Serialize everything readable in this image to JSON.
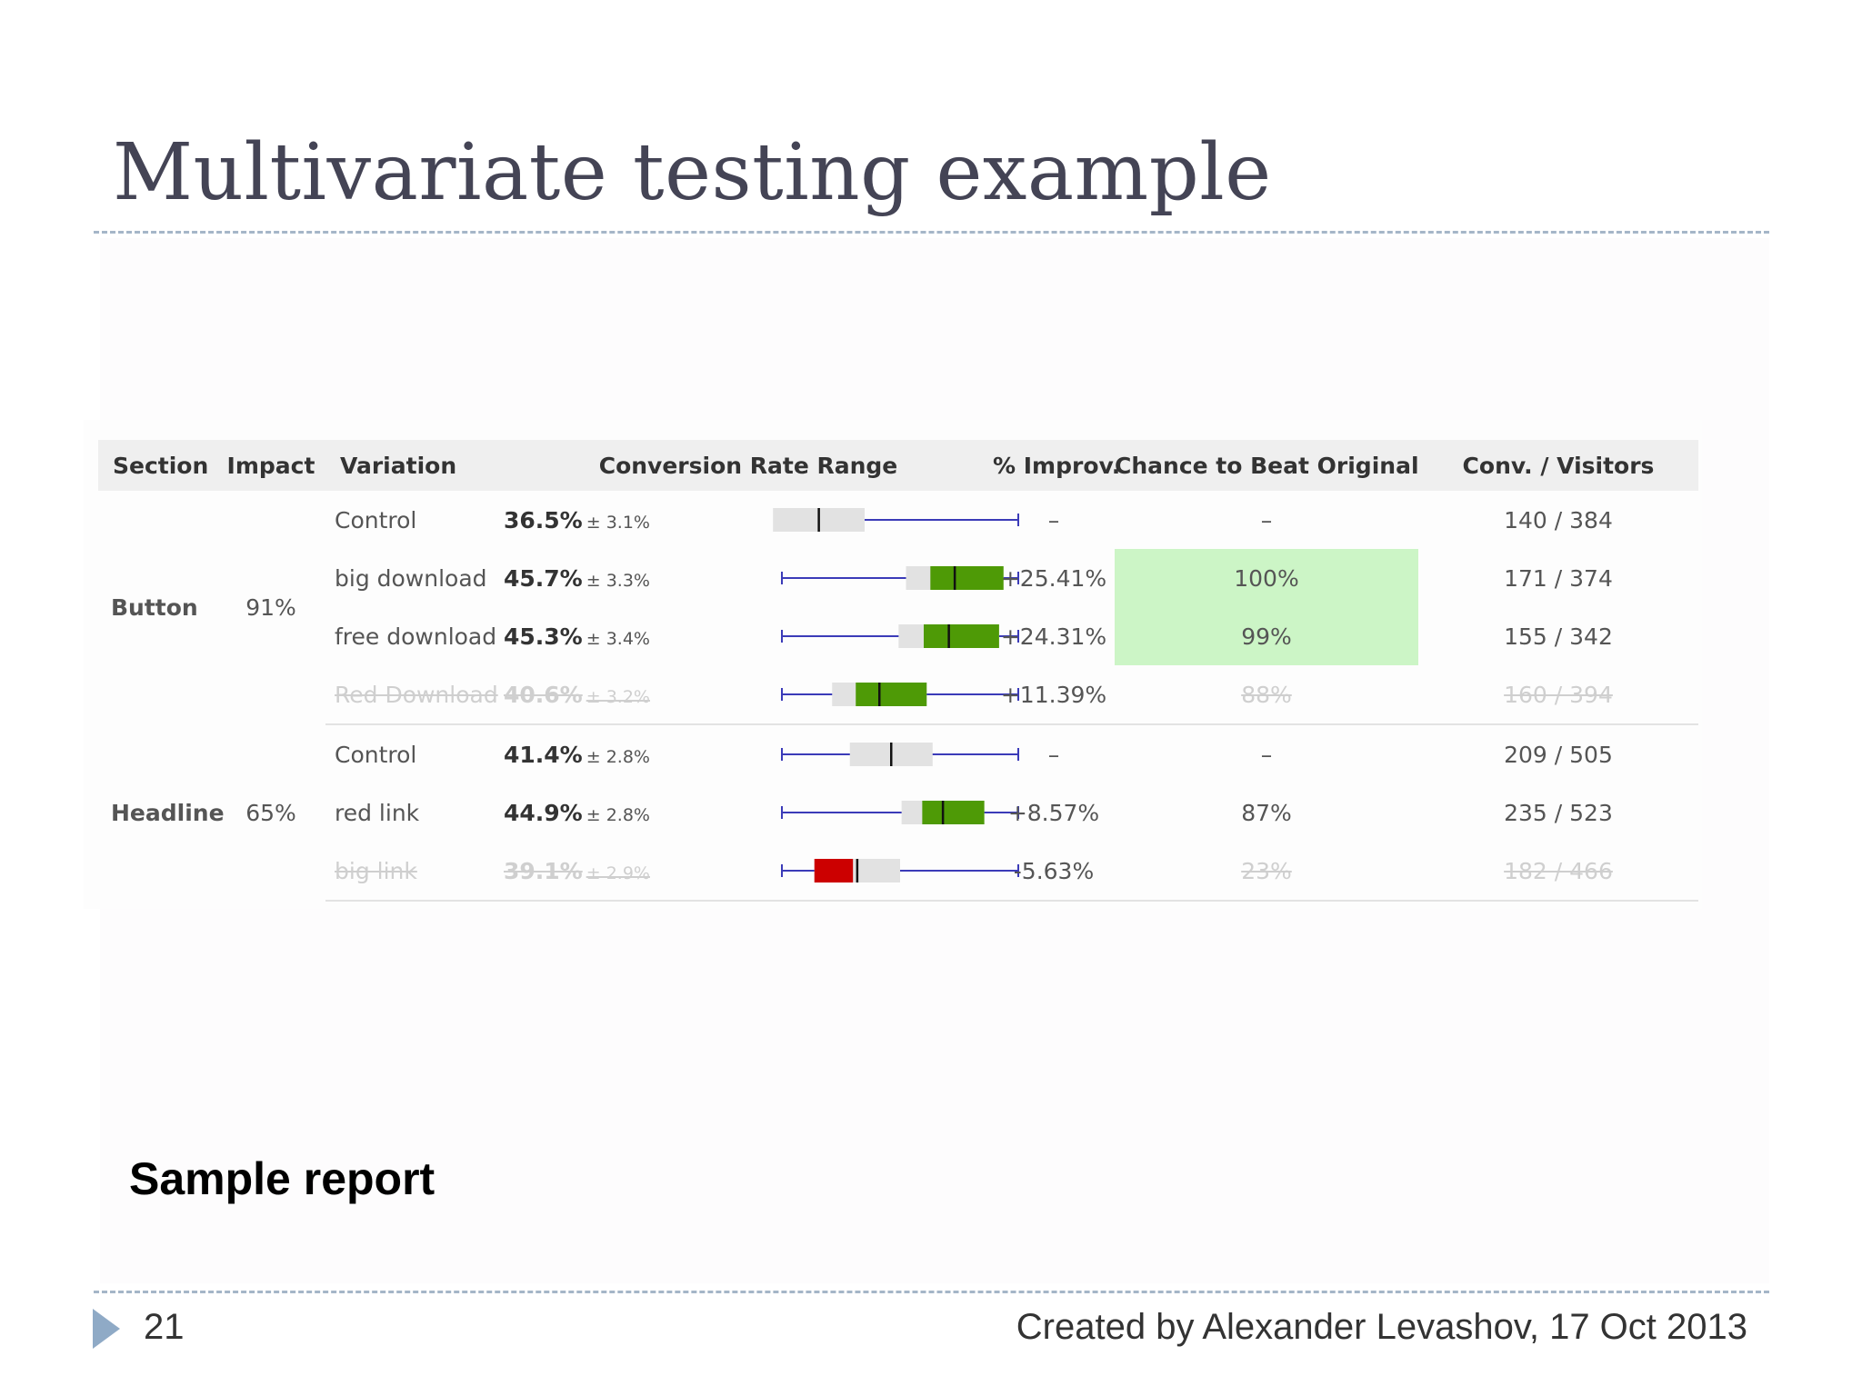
{
  "slide": {
    "title": "Multivariate testing example",
    "caption": "Sample report",
    "page_number": "21",
    "credit": "Created by Alexander Levashov, 17 Oct 2013"
  },
  "report": {
    "headers": {
      "section": "Section",
      "impact": "Impact",
      "variation": "Variation",
      "range": "Conversion Rate Range",
      "improvement": "% Improv.",
      "chance": "Chance to Beat Original",
      "conversions": "Conv. / Visitors"
    },
    "groups": [
      {
        "section": "Button",
        "impact": "91%",
        "rows": [
          {
            "variation": "Control",
            "rate": "36.5%",
            "error": "± 3.1%",
            "rate_value": 36.5,
            "error_value": 3.1,
            "bar_color": "gray",
            "improvement": "–",
            "improvement_color": "neutral",
            "chance": "–",
            "best": false,
            "conversions": "140 / 384",
            "disabled": false
          },
          {
            "variation": "big download",
            "rate": "45.7%",
            "error": "± 3.3%",
            "rate_value": 45.7,
            "error_value": 3.3,
            "bar_color": "green",
            "improvement": "+25.41%",
            "improvement_color": "green",
            "chance": "100%",
            "best": true,
            "conversions": "171 / 374",
            "disabled": false
          },
          {
            "variation": "free download",
            "rate": "45.3%",
            "error": "± 3.4%",
            "rate_value": 45.3,
            "error_value": 3.4,
            "bar_color": "green",
            "improvement": "+24.31%",
            "improvement_color": "green",
            "chance": "99%",
            "best": true,
            "conversions": "155 / 342",
            "disabled": false
          },
          {
            "variation": "Red Download",
            "rate": "40.6%",
            "error": "± 3.2%",
            "rate_value": 40.6,
            "error_value": 3.2,
            "bar_color": "green",
            "improvement": "+11.39%",
            "improvement_color": "green",
            "chance": "88%",
            "best": false,
            "conversions": "160 / 394",
            "disabled": true
          }
        ]
      },
      {
        "section": "Headline",
        "impact": "65%",
        "rows": [
          {
            "variation": "Control",
            "rate": "41.4%",
            "error": "± 2.8%",
            "rate_value": 41.4,
            "error_value": 2.8,
            "bar_color": "gray",
            "improvement": "–",
            "improvement_color": "neutral",
            "chance": "–",
            "best": false,
            "conversions": "209 / 505",
            "disabled": false
          },
          {
            "variation": "red link",
            "rate": "44.9%",
            "error": "± 2.8%",
            "rate_value": 44.9,
            "error_value": 2.8,
            "bar_color": "green",
            "improvement": "+8.57%",
            "improvement_color": "green",
            "chance": "87%",
            "best": false,
            "conversions": "235 / 523",
            "disabled": false
          },
          {
            "variation": "big link",
            "rate": "39.1%",
            "error": "± 2.9%",
            "rate_value": 39.1,
            "error_value": 2.9,
            "bar_color": "red",
            "improvement": "-5.63%",
            "improvement_color": "red",
            "chance": "23%",
            "best": false,
            "conversions": "182 / 466",
            "disabled": true
          }
        ]
      }
    ]
  },
  "colors": {
    "green_bar": "#4e9a06",
    "red_bar": "#cc0000",
    "gray_bar": "#e2e2e2",
    "axis_line": "#3b3bb8",
    "best_highlight": "#ccf5c6",
    "improvement_green": "#3a9a2a",
    "improvement_red": "#d02030",
    "accent_arrow": "#8faac6"
  }
}
